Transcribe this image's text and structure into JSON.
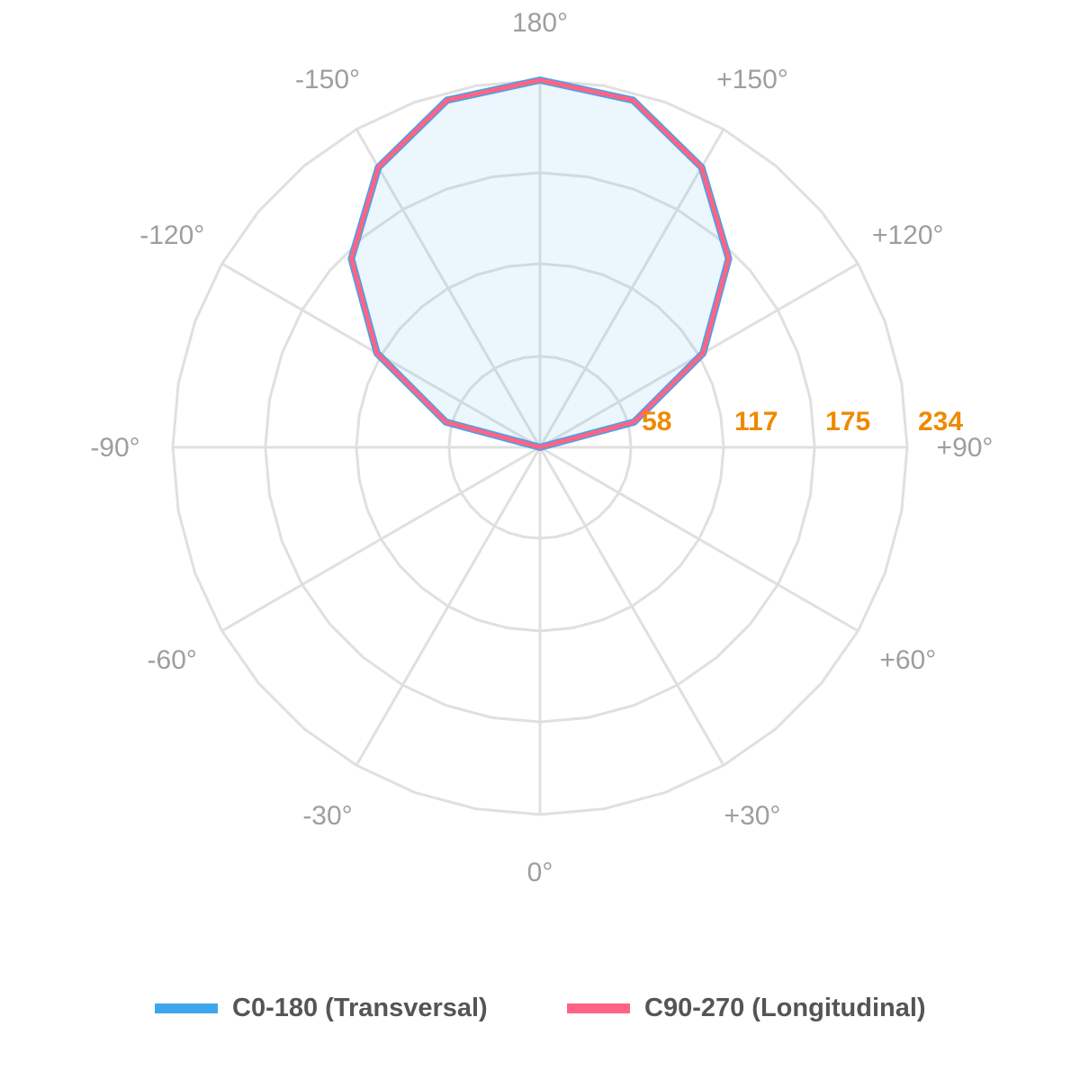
{
  "chart_data": {
    "type": "polar",
    "angle_labels": [
      "180°",
      "+150°",
      "+120°",
      "+90°",
      "+60°",
      "+30°",
      "0°",
      "-30°",
      "-60°",
      "-90°",
      "-120°",
      "-150°"
    ],
    "angle_values": [
      180,
      150,
      120,
      90,
      60,
      30,
      0,
      -30,
      -60,
      -90,
      -120,
      -150
    ],
    "radial_ticks": [
      58,
      117,
      175,
      234
    ],
    "radial_labels": [
      "58",
      "117",
      "175",
      "234"
    ],
    "rmax": 234,
    "grid": true,
    "legend_position": "bottom",
    "angles": [
      -180,
      -165,
      -150,
      -135,
      -120,
      -105,
      -90,
      -75,
      -60,
      -45,
      -30,
      -15,
      0,
      15,
      30,
      45,
      60,
      75,
      90,
      105,
      120,
      135,
      150,
      165,
      180
    ],
    "series": [
      {
        "name": "C0-180 (Transversal)",
        "color": "#3ea6ec",
        "values": [
          234,
          229,
          206,
          170,
          120,
          62,
          0,
          0,
          0,
          0,
          0,
          0,
          0,
          0,
          0,
          0,
          0,
          0,
          0,
          62,
          120,
          170,
          206,
          229,
          234
        ]
      },
      {
        "name": "C90-270 (Longitudinal)",
        "color": "#ff6384",
        "values": [
          234,
          229,
          206,
          170,
          120,
          62,
          0,
          0,
          0,
          0,
          0,
          0,
          0,
          0,
          0,
          0,
          0,
          0,
          0,
          62,
          120,
          170,
          206,
          229,
          234
        ]
      }
    ]
  }
}
